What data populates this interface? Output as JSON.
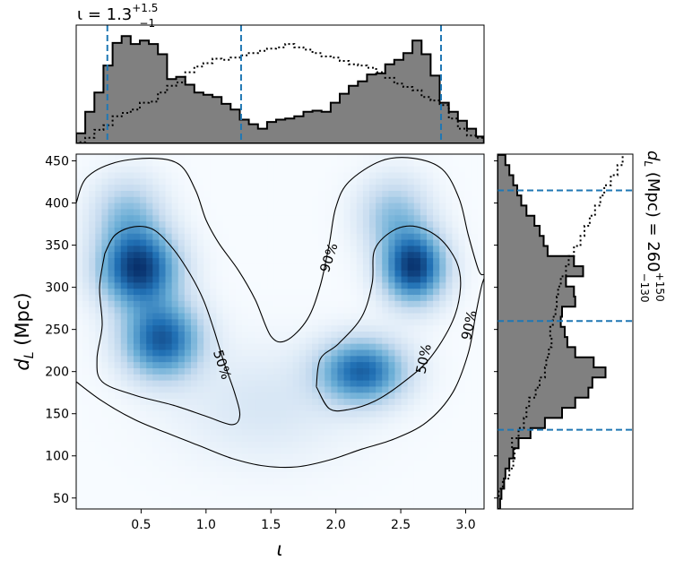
{
  "chart_data": [
    {
      "id": "top",
      "type": "area",
      "title_main": "ι = 1.3",
      "title_sup": "+1.5",
      "title_sub": "−1",
      "xlim": [
        0,
        3.14159
      ],
      "quantiles": [
        0.24,
        1.27,
        2.81
      ],
      "posterior": {
        "x": [
          0.0,
          0.07,
          0.14,
          0.21,
          0.28,
          0.35,
          0.42,
          0.49,
          0.56,
          0.63,
          0.7,
          0.77,
          0.84,
          0.91,
          0.98,
          1.05,
          1.12,
          1.19,
          1.26,
          1.33,
          1.4,
          1.47,
          1.54,
          1.61,
          1.68,
          1.75,
          1.82,
          1.89,
          1.96,
          2.03,
          2.1,
          2.17,
          2.24,
          2.31,
          2.38,
          2.45,
          2.52,
          2.59,
          2.66,
          2.73,
          2.8,
          2.87,
          2.94,
          3.01,
          3.08,
          3.14
        ],
        "values": [
          0.09,
          0.28,
          0.45,
          0.69,
          0.89,
          0.95,
          0.88,
          0.91,
          0.88,
          0.79,
          0.57,
          0.59,
          0.52,
          0.45,
          0.43,
          0.41,
          0.35,
          0.3,
          0.21,
          0.17,
          0.13,
          0.19,
          0.21,
          0.22,
          0.24,
          0.28,
          0.29,
          0.28,
          0.36,
          0.44,
          0.51,
          0.55,
          0.61,
          0.62,
          0.7,
          0.74,
          0.8,
          0.91,
          0.79,
          0.6,
          0.36,
          0.28,
          0.2,
          0.13,
          0.06,
          0.06
        ]
      },
      "prior": {
        "x": [
          0.0,
          0.07,
          0.14,
          0.21,
          0.28,
          0.35,
          0.42,
          0.49,
          0.56,
          0.63,
          0.7,
          0.77,
          0.84,
          0.91,
          0.98,
          1.05,
          1.12,
          1.19,
          1.26,
          1.33,
          1.4,
          1.47,
          1.54,
          1.61,
          1.68,
          1.75,
          1.82,
          1.89,
          1.96,
          2.03,
          2.1,
          2.17,
          2.24,
          2.31,
          2.38,
          2.45,
          2.52,
          2.59,
          2.66,
          2.73,
          2.8,
          2.87,
          2.94,
          3.01,
          3.08,
          3.14
        ],
        "values": [
          0.01,
          0.05,
          0.12,
          0.16,
          0.24,
          0.27,
          0.3,
          0.36,
          0.37,
          0.45,
          0.51,
          0.54,
          0.63,
          0.68,
          0.71,
          0.75,
          0.74,
          0.76,
          0.78,
          0.8,
          0.82,
          0.84,
          0.85,
          0.88,
          0.85,
          0.83,
          0.8,
          0.77,
          0.76,
          0.73,
          0.7,
          0.69,
          0.67,
          0.63,
          0.58,
          0.53,
          0.5,
          0.47,
          0.41,
          0.38,
          0.34,
          0.22,
          0.13,
          0.07,
          0.05,
          0.03
        ]
      }
    },
    {
      "id": "joint",
      "type": "heatmap",
      "xlabel": "ι",
      "ylabel_main": "d",
      "ylabel_sub": "L",
      "ylabel_rest": " (Mpc)",
      "xlim": [
        0,
        3.14159
      ],
      "ylim": [
        37,
        458
      ],
      "xticks": [
        0.5,
        1.0,
        1.5,
        2.0,
        2.5,
        3.0
      ],
      "xtick_labels": [
        "0.5",
        "1.0",
        "1.5",
        "2.0",
        "2.5",
        "3.0"
      ],
      "yticks": [
        50,
        100,
        150,
        200,
        250,
        300,
        350,
        400,
        450
      ],
      "ytick_labels": [
        "50",
        "100",
        "150",
        "200",
        "250",
        "300",
        "350",
        "400",
        "450"
      ],
      "colormap": [
        "#f7fbff",
        "#c6dbef",
        "#6baed6",
        "#2171b5",
        "#08306b"
      ],
      "blobs": [
        {
          "x": 0.48,
          "y": 322,
          "sx": 0.2,
          "sy": 30,
          "w": 1.0
        },
        {
          "x": 0.66,
          "y": 238,
          "sx": 0.2,
          "sy": 30,
          "w": 0.85
        },
        {
          "x": 2.6,
          "y": 324,
          "sx": 0.16,
          "sy": 28,
          "w": 1.0
        },
        {
          "x": 2.2,
          "y": 200,
          "sx": 0.22,
          "sy": 25,
          "w": 0.8
        },
        {
          "x": 0.4,
          "y": 385,
          "sx": 0.18,
          "sy": 30,
          "w": 0.35
        },
        {
          "x": 2.45,
          "y": 385,
          "sx": 0.18,
          "sy": 30,
          "w": 0.35
        },
        {
          "x": 1.45,
          "y": 160,
          "sx": 0.45,
          "sy": 45,
          "w": 0.12
        }
      ],
      "contours": [
        {
          "label": "50%",
          "label_at": [
            1.12,
            208
          ],
          "label_rotation": 72,
          "paths": [
            [
              [
                0.22,
                340
              ],
              [
                0.3,
                362
              ],
              [
                0.45,
                372
              ],
              [
                0.6,
                368
              ],
              [
                0.75,
                345
              ],
              [
                0.88,
                315
              ],
              [
                0.98,
                285
              ],
              [
                1.06,
                250
              ],
              [
                1.14,
                210
              ],
              [
                1.22,
                175
              ],
              [
                1.26,
                148
              ],
              [
                1.2,
                137
              ],
              [
                1.0,
                147
              ],
              [
                0.75,
                160
              ],
              [
                0.45,
                172
              ],
              [
                0.2,
                188
              ],
              [
                0.16,
                215
              ],
              [
                0.2,
                255
              ],
              [
                0.18,
                300
              ],
              [
                0.22,
                340
              ]
            ],
            [
              [
                1.85,
                182
              ],
              [
                1.95,
                156
              ],
              [
                2.1,
                155
              ],
              [
                2.3,
                165
              ],
              [
                2.5,
                185
              ],
              [
                2.72,
                215
              ],
              [
                2.9,
                260
              ],
              [
                2.96,
                300
              ],
              [
                2.93,
                330
              ],
              [
                2.8,
                358
              ],
              [
                2.62,
                372
              ],
              [
                2.45,
                368
              ],
              [
                2.3,
                345
              ],
              [
                2.28,
                305
              ],
              [
                2.2,
                265
              ],
              [
                2.02,
                233
              ],
              [
                1.88,
                215
              ],
              [
                1.85,
                182
              ]
            ]
          ]
        },
        {
          "label": "90%",
          "label_at": [
            1.95,
            335
          ],
          "label_rotation": -72,
          "paths": [
            [
              [
                0.0,
                188
              ],
              [
                0.2,
                165
              ],
              [
                0.45,
                143
              ],
              [
                0.7,
                127
              ],
              [
                0.95,
                112
              ],
              [
                1.2,
                97
              ],
              [
                1.45,
                88
              ],
              [
                1.7,
                87
              ],
              [
                1.95,
                95
              ],
              [
                2.2,
                108
              ],
              [
                2.45,
                120
              ],
              [
                2.7,
                140
              ],
              [
                2.9,
                175
              ],
              [
                3.02,
                222
              ],
              [
                3.08,
                270
              ],
              [
                3.12,
                300
              ],
              [
                3.14,
                310
              ]
            ],
            [
              [
                0.0,
                400
              ],
              [
                0.08,
                430
              ],
              [
                0.3,
                448
              ],
              [
                0.6,
                453
              ],
              [
                0.8,
                445
              ],
              [
                0.92,
                415
              ],
              [
                1.0,
                380
              ],
              [
                1.1,
                352
              ],
              [
                1.25,
                320
              ],
              [
                1.38,
                285
              ],
              [
                1.5,
                242
              ],
              [
                1.62,
                237
              ],
              [
                1.78,
                262
              ],
              [
                1.88,
                302
              ],
              [
                1.95,
                352
              ],
              [
                2.0,
                395
              ],
              [
                2.1,
                425
              ],
              [
                2.35,
                450
              ],
              [
                2.6,
                453
              ],
              [
                2.82,
                440
              ],
              [
                2.95,
                405
              ],
              [
                3.02,
                362
              ],
              [
                3.1,
                320
              ],
              [
                3.14,
                315
              ]
            ]
          ]
        }
      ]
    },
    {
      "id": "right",
      "type": "area",
      "orientation": "horizontal",
      "title_main": "d",
      "title_sub_L": "L",
      "title_rest": " (Mpc) = 260",
      "title_sup": "+150",
      "title_sub": "−130",
      "ylim": [
        37,
        458
      ],
      "quantiles": [
        131,
        260,
        415
      ],
      "posterior": {
        "y": [
          37,
          49,
          61,
          73,
          85,
          97,
          109,
          121,
          133,
          145,
          157,
          169,
          181,
          193,
          205,
          217,
          229,
          241,
          253,
          265,
          277,
          289,
          301,
          313,
          325,
          337,
          349,
          361,
          373,
          385,
          397,
          409,
          421,
          433,
          445,
          457
        ],
        "values": [
          0.02,
          0.03,
          0.05,
          0.06,
          0.09,
          0.12,
          0.16,
          0.25,
          0.36,
          0.49,
          0.59,
          0.69,
          0.72,
          0.82,
          0.73,
          0.59,
          0.53,
          0.51,
          0.48,
          0.49,
          0.59,
          0.58,
          0.52,
          0.65,
          0.58,
          0.38,
          0.35,
          0.32,
          0.28,
          0.22,
          0.18,
          0.15,
          0.12,
          0.09,
          0.06,
          0.04
        ]
      },
      "prior": {
        "y": [
          37,
          49,
          61,
          73,
          85,
          97,
          109,
          121,
          133,
          145,
          157,
          169,
          181,
          193,
          205,
          217,
          229,
          241,
          253,
          265,
          277,
          289,
          301,
          313,
          325,
          337,
          349,
          361,
          373,
          385,
          397,
          409,
          421,
          433,
          445,
          457
        ],
        "values": [
          0.0,
          0.01,
          0.04,
          0.09,
          0.12,
          0.13,
          0.11,
          0.16,
          0.2,
          0.22,
          0.24,
          0.29,
          0.32,
          0.36,
          0.37,
          0.39,
          0.41,
          0.4,
          0.42,
          0.44,
          0.45,
          0.46,
          0.48,
          0.52,
          0.54,
          0.58,
          0.63,
          0.66,
          0.7,
          0.74,
          0.78,
          0.81,
          0.86,
          0.91,
          0.95,
          0.97
        ]
      }
    }
  ],
  "colors": {
    "hist_fill": "#808080",
    "hist_edge": "#000000",
    "quantile_line": "#1f77b4",
    "contour": "#000000"
  }
}
